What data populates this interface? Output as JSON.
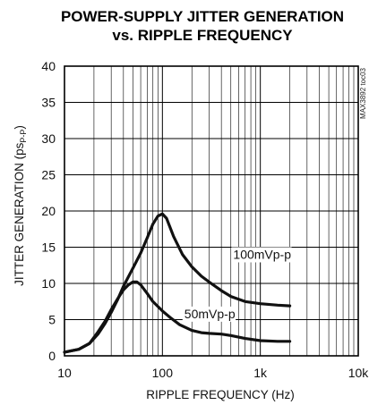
{
  "chart_data": {
    "type": "line",
    "title": "POWER-SUPPLY JITTER GENERATION\nvs. RIPPLE FREQUENCY",
    "title_lines": [
      "POWER-SUPPLY JITTER GENERATION",
      "vs. RIPPLE FREQUENCY"
    ],
    "xlabel": "RIPPLE FREQUENCY (Hz)",
    "ylabel": {
      "text_before": "JITTER GENERATION (ps",
      "subscript": "P-P",
      "text_after": ")"
    },
    "x_scale": "log",
    "xlim": [
      10,
      10000
    ],
    "ylim": [
      0,
      40
    ],
    "x_ticks": [
      {
        "value": 10,
        "label": "10"
      },
      {
        "value": 100,
        "label": "100"
      },
      {
        "value": 1000,
        "label": "1k"
      },
      {
        "value": 10000,
        "label": "10k"
      }
    ],
    "y_ticks": [
      {
        "value": 0,
        "label": "0"
      },
      {
        "value": 5,
        "label": "5"
      },
      {
        "value": 10,
        "label": "10"
      },
      {
        "value": 15,
        "label": "15"
      },
      {
        "value": 20,
        "label": "20"
      },
      {
        "value": 25,
        "label": "25"
      },
      {
        "value": 30,
        "label": "30"
      },
      {
        "value": 35,
        "label": "35"
      },
      {
        "value": 40,
        "label": "40"
      }
    ],
    "grid": true,
    "side_code": "MAX3892 toc03",
    "series": [
      {
        "name": "100mVp-p",
        "x": [
          10,
          14,
          18,
          22,
          26,
          30,
          35,
          40,
          50,
          60,
          70,
          80,
          90,
          100,
          110,
          130,
          160,
          200,
          250,
          300,
          400,
          500,
          700,
          1000,
          1500,
          2000
        ],
        "y": [
          0.5,
          0.9,
          1.7,
          3.0,
          4.5,
          6.0,
          7.8,
          9.6,
          12.1,
          14.2,
          16.3,
          18.2,
          19.3,
          19.6,
          19.0,
          16.5,
          14.0,
          12.3,
          11.0,
          10.2,
          9.0,
          8.2,
          7.5,
          7.2,
          7.0,
          6.9
        ]
      },
      {
        "name": "50mVp-p",
        "x": [
          10,
          14,
          18,
          22,
          26,
          30,
          35,
          40,
          45,
          50,
          55,
          60,
          70,
          80,
          100,
          120,
          150,
          200,
          250,
          300,
          400,
          500,
          700,
          1000,
          1500,
          2000
        ],
        "y": [
          0.5,
          0.9,
          1.7,
          3.3,
          4.8,
          6.4,
          7.9,
          9.1,
          9.8,
          10.2,
          10.2,
          9.8,
          8.6,
          7.5,
          6.2,
          5.3,
          4.3,
          3.5,
          3.2,
          3.1,
          3.0,
          2.8,
          2.4,
          2.1,
          2.0,
          2.0
        ]
      }
    ]
  }
}
